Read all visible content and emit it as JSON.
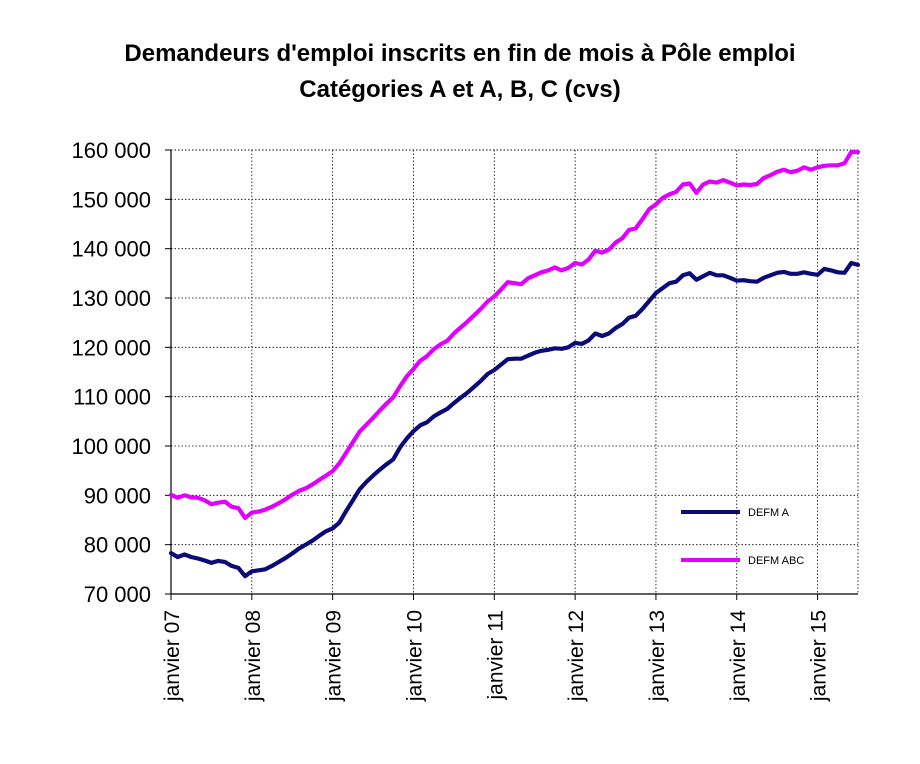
{
  "chart_data": {
    "type": "line",
    "title": "Demandeurs d'emploi inscrits en fin de mois à Pôle emploi",
    "subtitle": "Catégories A et A, B, C (cvs)",
    "xlabel": "",
    "ylabel": "",
    "ylim": [
      70000,
      160000
    ],
    "y_ticks": [
      "70 000",
      "80 000",
      "90 000",
      "100 000",
      "110 000",
      "120 000",
      "130 000",
      "140 000",
      "150 000",
      "160 000"
    ],
    "x_tick_labels": [
      "janvier 07",
      "janvier 08",
      "janvier 09",
      "janvier 10",
      "janvier 11",
      "janvier 12",
      "janvier 13",
      "janvier 14",
      "janvier 15"
    ],
    "x_range": [
      "2007-01",
      "2015-07"
    ],
    "grid": true,
    "legend_position": "bottom-right",
    "series": [
      {
        "name": "DEFM A",
        "color": "#0a0a78",
        "points": [
          [
            "2007-01",
            78300
          ],
          [
            "2007-02",
            77500
          ],
          [
            "2007-03",
            78000
          ],
          [
            "2007-04",
            77500
          ],
          [
            "2007-05",
            77200
          ],
          [
            "2007-06",
            76800
          ],
          [
            "2007-07",
            76300
          ],
          [
            "2007-08",
            76700
          ],
          [
            "2007-09",
            76500
          ],
          [
            "2007-10",
            75700
          ],
          [
            "2007-11",
            75300
          ],
          [
            "2007-12",
            73600
          ],
          [
            "2008-01",
            74600
          ],
          [
            "2008-02",
            74800
          ],
          [
            "2008-03",
            75000
          ],
          [
            "2008-04",
            75700
          ],
          [
            "2008-05",
            76500
          ],
          [
            "2008-06",
            77300
          ],
          [
            "2008-07",
            78200
          ],
          [
            "2008-08",
            79200
          ],
          [
            "2008-09",
            80000
          ],
          [
            "2008-10",
            80800
          ],
          [
            "2008-11",
            81800
          ],
          [
            "2008-12",
            82700
          ],
          [
            "2009-01",
            83300
          ],
          [
            "2009-02",
            84500
          ],
          [
            "2009-03",
            86800
          ],
          [
            "2009-04",
            89000
          ],
          [
            "2009-05",
            91200
          ],
          [
            "2009-06",
            92700
          ],
          [
            "2009-07",
            94000
          ],
          [
            "2009-08",
            95200
          ],
          [
            "2009-09",
            96300
          ],
          [
            "2009-10",
            97300
          ],
          [
            "2009-11",
            99700
          ],
          [
            "2009-12",
            101500
          ],
          [
            "2010-01",
            103000
          ],
          [
            "2010-02",
            104200
          ],
          [
            "2010-03",
            104800
          ],
          [
            "2010-04",
            106000
          ],
          [
            "2010-05",
            106800
          ],
          [
            "2010-06",
            107500
          ],
          [
            "2010-07",
            108700
          ],
          [
            "2010-08",
            109800
          ],
          [
            "2010-09",
            110800
          ],
          [
            "2010-10",
            112000
          ],
          [
            "2010-11",
            113200
          ],
          [
            "2010-12",
            114600
          ],
          [
            "2011-01",
            115400
          ],
          [
            "2011-02",
            116500
          ],
          [
            "2011-03",
            117600
          ],
          [
            "2011-04",
            117700
          ],
          [
            "2011-05",
            117700
          ],
          [
            "2011-06",
            118300
          ],
          [
            "2011-07",
            118900
          ],
          [
            "2011-08",
            119300
          ],
          [
            "2011-09",
            119500
          ],
          [
            "2011-10",
            119800
          ],
          [
            "2011-11",
            119700
          ],
          [
            "2011-12",
            120000
          ],
          [
            "2012-01",
            120900
          ],
          [
            "2012-02",
            120700
          ],
          [
            "2012-03",
            121400
          ],
          [
            "2012-04",
            122800
          ],
          [
            "2012-05",
            122300
          ],
          [
            "2012-06",
            122800
          ],
          [
            "2012-07",
            123900
          ],
          [
            "2012-08",
            124700
          ],
          [
            "2012-09",
            126000
          ],
          [
            "2012-10",
            126400
          ],
          [
            "2012-11",
            127800
          ],
          [
            "2012-12",
            129400
          ],
          [
            "2013-01",
            131000
          ],
          [
            "2013-02",
            132000
          ],
          [
            "2013-03",
            133000
          ],
          [
            "2013-04",
            133300
          ],
          [
            "2013-05",
            134600
          ],
          [
            "2013-06",
            135000
          ],
          [
            "2013-07",
            133700
          ],
          [
            "2013-08",
            134400
          ],
          [
            "2013-09",
            135100
          ],
          [
            "2013-10",
            134600
          ],
          [
            "2013-11",
            134600
          ],
          [
            "2013-12",
            134100
          ],
          [
            "2014-01",
            133500
          ],
          [
            "2014-02",
            133600
          ],
          [
            "2014-03",
            133400
          ],
          [
            "2014-04",
            133300
          ],
          [
            "2014-05",
            134100
          ],
          [
            "2014-06",
            134600
          ],
          [
            "2014-07",
            135100
          ],
          [
            "2014-08",
            135300
          ],
          [
            "2014-09",
            134900
          ],
          [
            "2014-10",
            134900
          ],
          [
            "2014-11",
            135200
          ],
          [
            "2014-12",
            134900
          ],
          [
            "2015-01",
            134700
          ],
          [
            "2015-02",
            135900
          ],
          [
            "2015-03",
            135600
          ],
          [
            "2015-04",
            135200
          ],
          [
            "2015-05",
            135100
          ],
          [
            "2015-06",
            137100
          ],
          [
            "2015-07",
            136700
          ]
        ]
      },
      {
        "name": "DEFM ABC",
        "color": "#e000ff",
        "points": [
          [
            "2007-01",
            90100
          ],
          [
            "2007-02",
            89500
          ],
          [
            "2007-03",
            90000
          ],
          [
            "2007-04",
            89600
          ],
          [
            "2007-05",
            89500
          ],
          [
            "2007-06",
            89000
          ],
          [
            "2007-07",
            88200
          ],
          [
            "2007-08",
            88500
          ],
          [
            "2007-09",
            88700
          ],
          [
            "2007-10",
            87700
          ],
          [
            "2007-11",
            87400
          ],
          [
            "2007-12",
            85400
          ],
          [
            "2008-01",
            86500
          ],
          [
            "2008-02",
            86700
          ],
          [
            "2008-03",
            87100
          ],
          [
            "2008-04",
            87700
          ],
          [
            "2008-05",
            88400
          ],
          [
            "2008-06",
            89200
          ],
          [
            "2008-07",
            90100
          ],
          [
            "2008-08",
            90900
          ],
          [
            "2008-09",
            91400
          ],
          [
            "2008-10",
            92200
          ],
          [
            "2008-11",
            93100
          ],
          [
            "2008-12",
            94000
          ],
          [
            "2009-01",
            94900
          ],
          [
            "2009-02",
            96500
          ],
          [
            "2009-03",
            98600
          ],
          [
            "2009-04",
            100800
          ],
          [
            "2009-05",
            102900
          ],
          [
            "2009-06",
            104300
          ],
          [
            "2009-07",
            105700
          ],
          [
            "2009-08",
            107200
          ],
          [
            "2009-09",
            108600
          ],
          [
            "2009-10",
            109900
          ],
          [
            "2009-11",
            112100
          ],
          [
            "2009-12",
            114100
          ],
          [
            "2010-01",
            115600
          ],
          [
            "2010-02",
            117300
          ],
          [
            "2010-03",
            118200
          ],
          [
            "2010-04",
            119600
          ],
          [
            "2010-05",
            120600
          ],
          [
            "2010-06",
            121300
          ],
          [
            "2010-07",
            122800
          ],
          [
            "2010-08",
            124000
          ],
          [
            "2010-09",
            125200
          ],
          [
            "2010-10",
            126500
          ],
          [
            "2010-11",
            127800
          ],
          [
            "2010-12",
            129300
          ],
          [
            "2011-01",
            130300
          ],
          [
            "2011-02",
            131700
          ],
          [
            "2011-03",
            133200
          ],
          [
            "2011-04",
            133000
          ],
          [
            "2011-05",
            132800
          ],
          [
            "2011-06",
            134000
          ],
          [
            "2011-07",
            134600
          ],
          [
            "2011-08",
            135200
          ],
          [
            "2011-09",
            135600
          ],
          [
            "2011-10",
            136200
          ],
          [
            "2011-11",
            135600
          ],
          [
            "2011-12",
            136100
          ],
          [
            "2012-01",
            137100
          ],
          [
            "2012-02",
            136800
          ],
          [
            "2012-03",
            137800
          ],
          [
            "2012-04",
            139600
          ],
          [
            "2012-05",
            139200
          ],
          [
            "2012-06",
            139800
          ],
          [
            "2012-07",
            141200
          ],
          [
            "2012-08",
            142100
          ],
          [
            "2012-09",
            143800
          ],
          [
            "2012-10",
            144100
          ],
          [
            "2012-11",
            146000
          ],
          [
            "2012-12",
            148000
          ],
          [
            "2013-01",
            149000
          ],
          [
            "2013-02",
            150300
          ],
          [
            "2013-03",
            151000
          ],
          [
            "2013-04",
            151500
          ],
          [
            "2013-05",
            153000
          ],
          [
            "2013-06",
            153200
          ],
          [
            "2013-07",
            151300
          ],
          [
            "2013-08",
            153000
          ],
          [
            "2013-09",
            153600
          ],
          [
            "2013-10",
            153400
          ],
          [
            "2013-11",
            153900
          ],
          [
            "2013-12",
            153400
          ],
          [
            "2014-01",
            152800
          ],
          [
            "2014-02",
            153000
          ],
          [
            "2014-03",
            152900
          ],
          [
            "2014-04",
            153100
          ],
          [
            "2014-05",
            154300
          ],
          [
            "2014-06",
            154900
          ],
          [
            "2014-07",
            155600
          ],
          [
            "2014-08",
            156000
          ],
          [
            "2014-09",
            155500
          ],
          [
            "2014-10",
            155800
          ],
          [
            "2014-11",
            156500
          ],
          [
            "2014-12",
            156000
          ],
          [
            "2015-01",
            156500
          ],
          [
            "2015-02",
            156800
          ],
          [
            "2015-03",
            156900
          ],
          [
            "2015-04",
            156900
          ],
          [
            "2015-05",
            157300
          ],
          [
            "2015-06",
            159600
          ],
          [
            "2015-07",
            159600
          ]
        ]
      }
    ]
  }
}
